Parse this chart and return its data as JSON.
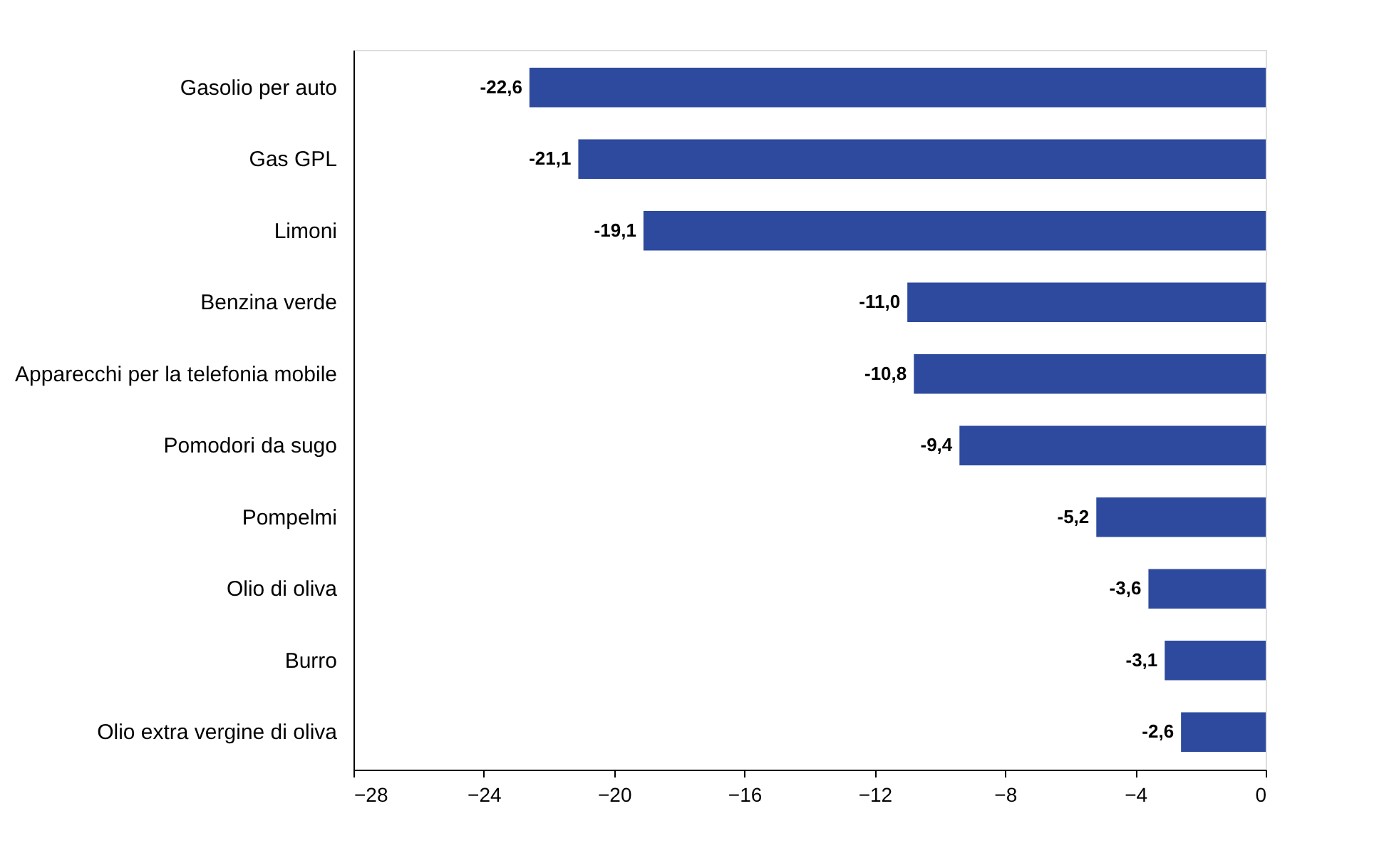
{
  "chart_data": {
    "type": "bar",
    "orientation": "horizontal",
    "categories": [
      "Gasolio per auto",
      "Gas GPL",
      "Limoni",
      "Benzina verde",
      "Apparecchi per la telefonia mobile",
      "Pomodori da sugo",
      "Pompelmi",
      "Olio di oliva",
      "Burro",
      "Olio extra vergine di oliva"
    ],
    "values": [
      -22.6,
      -21.1,
      -19.1,
      -11.0,
      -10.8,
      -9.4,
      -5.2,
      -3.6,
      -3.1,
      -2.6
    ],
    "value_labels": [
      "-22,6",
      "-21,1",
      "-19,1",
      "-11,0",
      "-10,8",
      "-9,4",
      "-5,2",
      "-3,6",
      "-3,1",
      "-2,6"
    ],
    "color": "#2e4a9e",
    "xlim": [
      -28,
      0
    ],
    "xticks": [
      -28,
      -24,
      -20,
      -16,
      -12,
      -8,
      -4,
      0
    ],
    "grid": false
  }
}
